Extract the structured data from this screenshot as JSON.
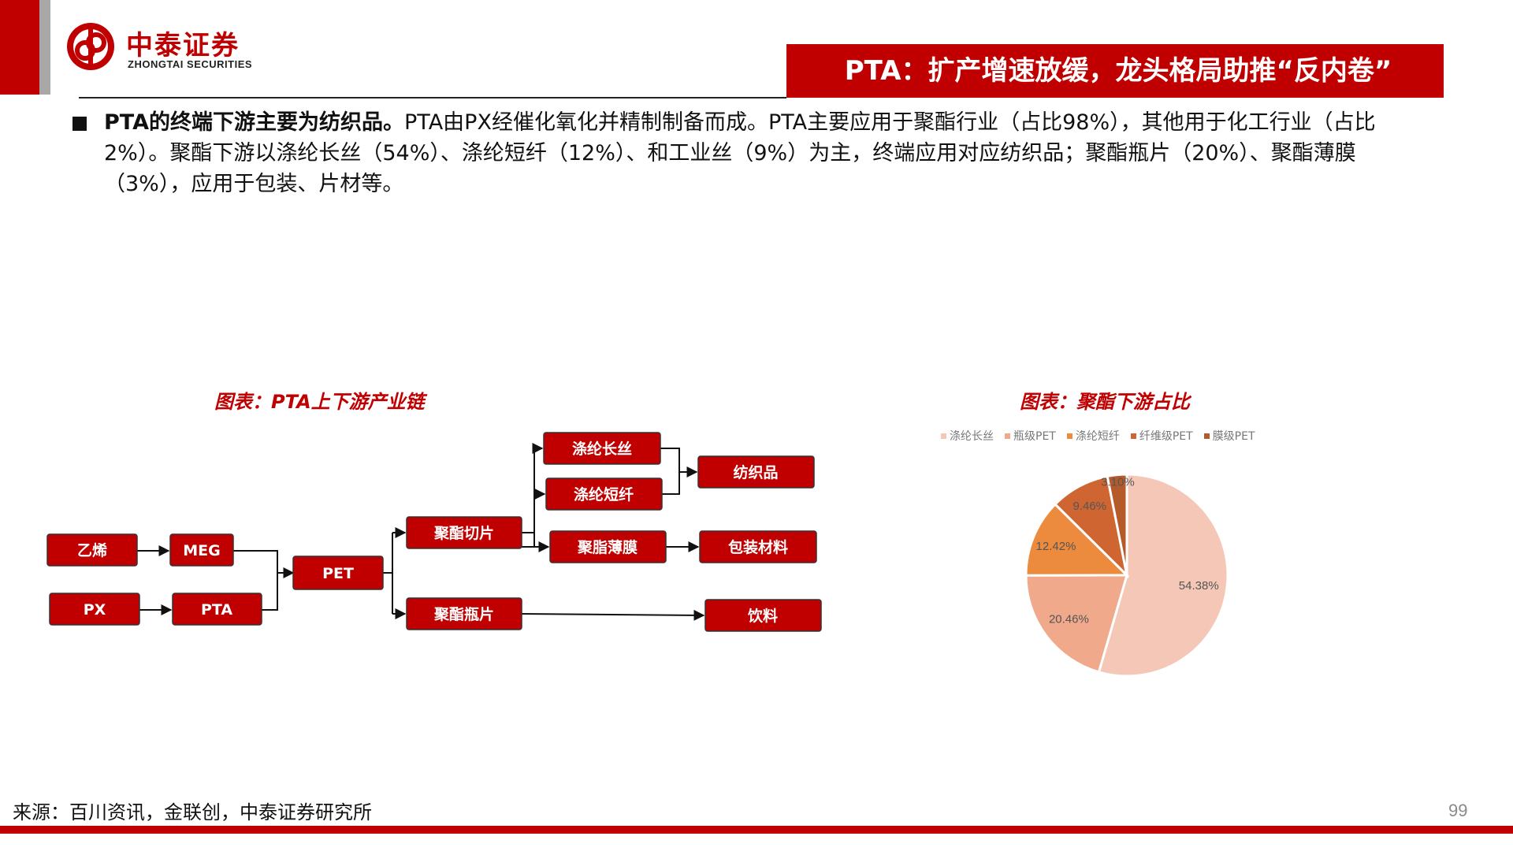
{
  "brand": {
    "name_cn": "中泰证券",
    "name_en": "ZHONGTAI SECURITIES",
    "color": "#c00000"
  },
  "slide": {
    "title": "PTA：扩产增速放缓，龙头格局助推“反内卷”",
    "bullet_lead": "PTA的终端下游主要为纺织品。",
    "bullet_body": "PTA由PX经催化氧化并精制制备而成。PTA主要应用于聚酯行业（占比98%），其他用于化工行业（占比2%）。聚酯下游以涤纶长丝（54%）、涤纶短纤（12%）、和工业丝（9%）为主，终端应用对应纺织品；聚酯瓶片（20%）、聚酯薄膜（3%），应用于包装、片材等。",
    "page_number": "99"
  },
  "flow_chart": {
    "title": "图表：PTA上下游产业链",
    "nodes": {
      "ethylene": "乙烯",
      "px": "PX",
      "meg": "MEG",
      "pta": "PTA",
      "pet": "PET",
      "chip": "聚酯切片",
      "bottle": "聚酯瓶片",
      "filament": "涤纶长丝",
      "staple": "涤纶短纤",
      "film": "聚脂薄膜",
      "textile": "纺织品",
      "packaging": "包装材料",
      "beverage": "饮料"
    },
    "node_color": "#c00000"
  },
  "chart_data": {
    "type": "pie",
    "title": "图表：聚酯下游占比",
    "legend_position": "top",
    "categories": [
      "涤纶长丝",
      "瓶级PET",
      "涤纶短纤",
      "纤维级PET",
      "膜级PET"
    ],
    "values": [
      54.38,
      20.46,
      12.42,
      9.46,
      3.1
    ],
    "labels": [
      "54.38%",
      "20.46%",
      "12.42%",
      "9.46%",
      "3.10%"
    ],
    "colors": [
      "#f4c7b6",
      "#f0a98b",
      "#ec8a3d",
      "#cf6631",
      "#b55a2a"
    ]
  },
  "footer": {
    "source": "来源：百川资讯，金联创，中泰证券研究所"
  }
}
